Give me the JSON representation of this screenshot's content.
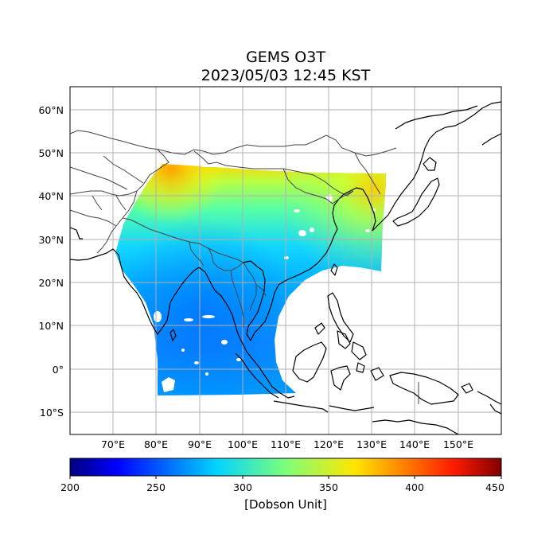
{
  "title": "GEMS O3T",
  "timestamp": "2023/05/03 12:45 KST",
  "map": {
    "lon_range": [
      60,
      160
    ],
    "lat_range": [
      -15,
      65
    ],
    "lat_ticks": [
      "60°N",
      "50°N",
      "40°N",
      "30°N",
      "20°N",
      "10°N",
      "0°",
      "10°S"
    ],
    "lon_ticks": [
      "70°E",
      "80°E",
      "90°E",
      "100°E",
      "110°E",
      "120°E",
      "130°E",
      "140°E",
      "150°E"
    ],
    "gridlines": true
  },
  "colorbar": {
    "label": "[Dobson Unit]",
    "ticks": [
      "200",
      "250",
      "300",
      "350",
      "400",
      "450"
    ],
    "min": 200,
    "max": 450,
    "colormap": "jet"
  },
  "colors": {
    "coastline": "#000000",
    "border": "#444444",
    "grid": "#b0b0b0"
  }
}
